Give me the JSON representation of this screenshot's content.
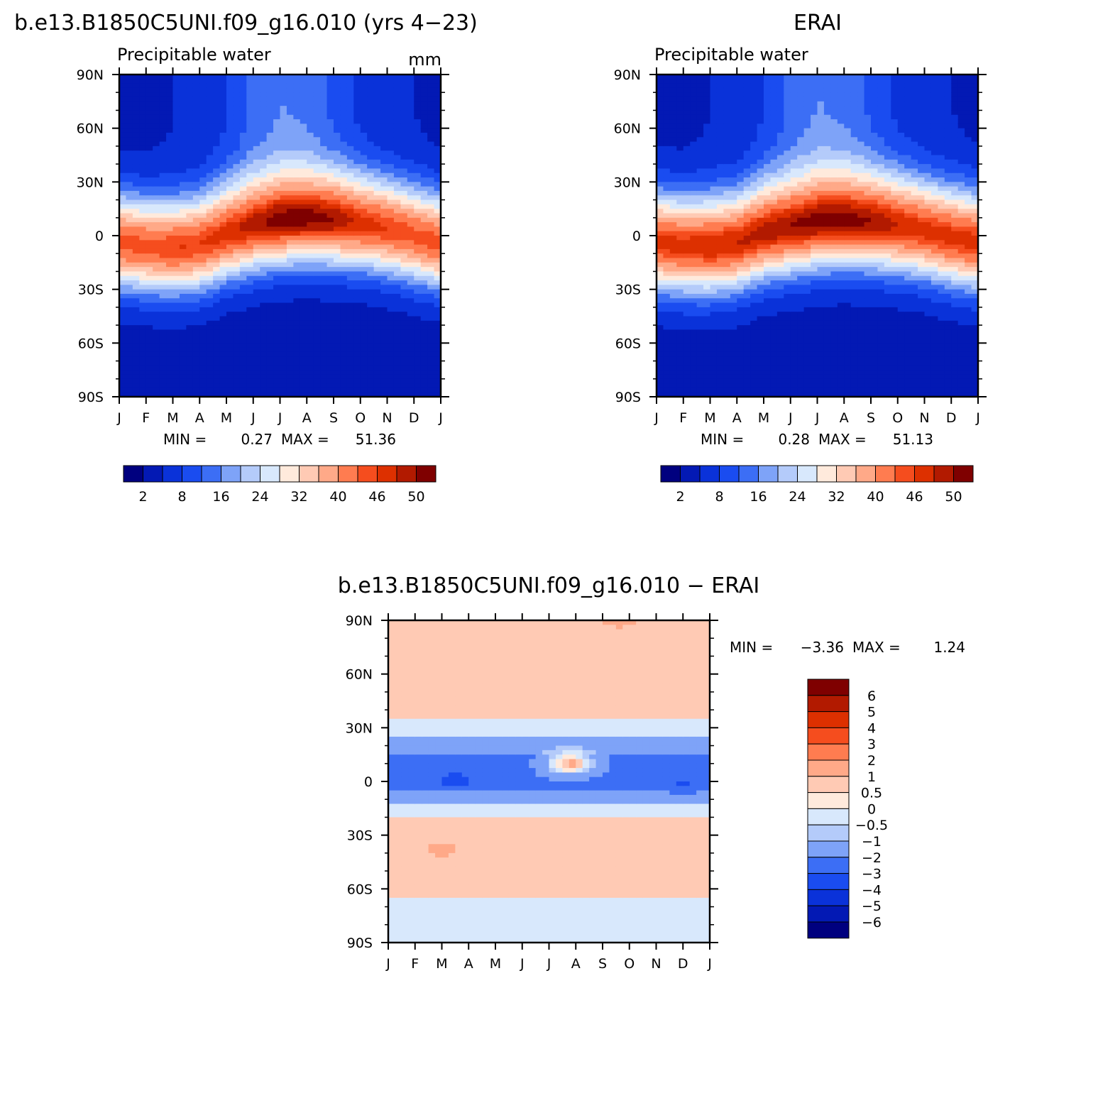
{
  "colors": {
    "abs_scale": [
      "#00007f",
      "#0319b4",
      "#0a32d9",
      "#1a4cf0",
      "#3c6ef5",
      "#7ea3f8",
      "#b4cbfa",
      "#d8e8fc",
      "#ffeadc",
      "#ffcab4",
      "#ffa988",
      "#ff7c50",
      "#f54d1e",
      "#dd3000",
      "#b21a00",
      "#7f0000"
    ],
    "diff_scale": [
      "#00007f",
      "#0319b4",
      "#0a32d9",
      "#1a4cf0",
      "#3c6ef5",
      "#7ea3f8",
      "#b4cbfa",
      "#d8e8fc",
      "#ffeadc",
      "#ffcab4",
      "#ffa988",
      "#ff7c50",
      "#f54d1e",
      "#dd3000",
      "#b21a00",
      "#7f0000"
    ]
  },
  "chart_data": [
    {
      "type": "heatmap",
      "title": "b.e13.B1850C5UNI.f09_g16.010 (yrs 4−23)",
      "subtitle": "Precipitable water",
      "units": "mm",
      "x_ticks": [
        "J",
        "F",
        "M",
        "A",
        "M",
        "J",
        "J",
        "A",
        "S",
        "O",
        "N",
        "D",
        "J"
      ],
      "y_ticks": [
        "90N",
        "60N",
        "30N",
        "0",
        "30S",
        "60S",
        "90S"
      ],
      "y_values": [
        90,
        60,
        30,
        0,
        -30,
        -60,
        -90
      ],
      "stats": {
        "min_label": "MIN =",
        "min": "0.27",
        "max_label": "MAX =",
        "max": "51.36"
      },
      "colorbar_labels": [
        "2",
        "8",
        "16",
        "24",
        "32",
        "40",
        "46",
        "50"
      ],
      "colorbar_levels": [
        2,
        4,
        8,
        12,
        16,
        20,
        24,
        28,
        32,
        36,
        40,
        44,
        46,
        48,
        50
      ],
      "field": {
        "lat_peak_by_month": [
          -4,
          -6,
          -7,
          -5,
          1,
          6,
          9,
          10,
          9,
          7,
          4,
          0,
          -4
        ],
        "peak_value_by_month": [
          45,
          45,
          46,
          46,
          47,
          49,
          51,
          51,
          50,
          47,
          46,
          45,
          45
        ],
        "width": 27,
        "nh_polar_by_month": [
          3,
          3,
          4,
          5,
          8,
          13,
          16,
          15,
          11,
          7,
          5,
          4,
          3
        ],
        "sh_polar": 2,
        "max": 51.36,
        "min": 0.27
      }
    },
    {
      "type": "heatmap",
      "title": "ERAI",
      "subtitle": "Precipitable water",
      "x_ticks": [
        "J",
        "F",
        "M",
        "A",
        "M",
        "J",
        "J",
        "A",
        "S",
        "O",
        "N",
        "D",
        "J"
      ],
      "y_ticks": [
        "90N",
        "60N",
        "30N",
        "0",
        "30S",
        "60S",
        "90S"
      ],
      "y_values": [
        90,
        60,
        30,
        0,
        -30,
        -60,
        -90
      ],
      "stats": {
        "min_label": "MIN =",
        "min": "0.28",
        "max_label": "MAX =",
        "max": "51.13"
      },
      "colorbar_labels": [
        "2",
        "8",
        "16",
        "24",
        "32",
        "40",
        "46",
        "50"
      ],
      "colorbar_levels": [
        2,
        4,
        8,
        12,
        16,
        20,
        24,
        28,
        32,
        36,
        40,
        44,
        46,
        48,
        50
      ],
      "field": {
        "lat_peak_by_month": [
          -4,
          -6,
          -6,
          -4,
          2,
          5,
          8,
          9,
          8,
          6,
          3,
          -1,
          -4
        ],
        "peak_value_by_month": [
          47,
          47,
          48,
          48,
          49,
          50,
          51,
          51,
          50,
          48,
          47,
          47,
          47
        ],
        "width": 28,
        "nh_polar_by_month": [
          3,
          3,
          4,
          5,
          8,
          13,
          16,
          15,
          11,
          7,
          5,
          4,
          3
        ],
        "sh_polar": 2,
        "max": 51.13,
        "min": 0.28
      }
    },
    {
      "type": "heatmap",
      "title": "b.e13.B1850C5UNI.f09_g16.010 − ERAI",
      "x_ticks": [
        "J",
        "F",
        "M",
        "A",
        "M",
        "J",
        "J",
        "A",
        "S",
        "O",
        "N",
        "D",
        "J"
      ],
      "y_ticks": [
        "90N",
        "60N",
        "30N",
        "0",
        "30S",
        "60S",
        "90S"
      ],
      "y_values": [
        90,
        60,
        30,
        0,
        -30,
        -60,
        -90
      ],
      "stats": {
        "min_label": "MIN =",
        "min": "−3.36",
        "max_label": "MAX =",
        "max": "1.24"
      },
      "colorbar_labels": [
        "6",
        "5",
        "4",
        "3",
        "2",
        "1",
        "0.5",
        "0",
        "−0.5",
        "−1",
        "−2",
        "−3",
        "−4",
        "−5",
        "−6"
      ],
      "colorbar_levels": [
        -6,
        -5,
        -4,
        -3,
        -2,
        -1,
        -0.5,
        0,
        0.5,
        1,
        2,
        3,
        4,
        5,
        6
      ],
      "field": {
        "bands": [
          {
            "lat_min": 35,
            "lat_max": 90,
            "value": 0.6
          },
          {
            "lat_min": 25,
            "lat_max": 35,
            "value": -0.3
          },
          {
            "lat_min": 15,
            "lat_max": 25,
            "value": -1.2
          },
          {
            "lat_min": -5,
            "lat_max": 15,
            "value": -2.2
          },
          {
            "lat_min": -12,
            "lat_max": -5,
            "value": -1.4
          },
          {
            "lat_min": -20,
            "lat_max": -12,
            "value": -0.4
          },
          {
            "lat_min": -65,
            "lat_max": -20,
            "value": 0.6
          },
          {
            "lat_min": -90,
            "lat_max": -65,
            "value": -0.3
          }
        ],
        "features": [
          {
            "month": 6.8,
            "lat": 10,
            "value": 1.24
          },
          {
            "month": 2.5,
            "lat": 1,
            "value": -3.36
          },
          {
            "month": 11.0,
            "lat": -1,
            "value": -3.1
          },
          {
            "month": 8.6,
            "lat": 90,
            "value": 1.2
          },
          {
            "month": 2.0,
            "lat": -38,
            "value": 1.2
          }
        ],
        "min": -3.36,
        "max": 1.24
      }
    }
  ]
}
